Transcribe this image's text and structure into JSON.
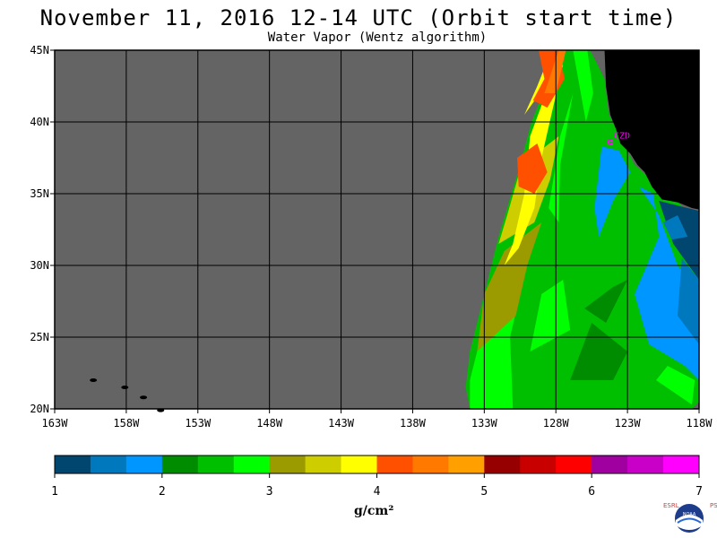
{
  "title": "November 11, 2016  12-14 UTC  (Orbit start time)",
  "subtitle": "Water Vapor (Wentz algorithm)",
  "map": {
    "lon_range": [
      -163,
      -118
    ],
    "lat_range": [
      20,
      45
    ],
    "lon_ticks": [
      -163,
      -158,
      -153,
      -148,
      -143,
      -138,
      -133,
      -128,
      -123,
      -118
    ],
    "lon_tick_labels": [
      "163W",
      "158W",
      "153W",
      "148W",
      "143W",
      "138W",
      "133W",
      "128W",
      "123W",
      "118W"
    ],
    "lat_ticks": [
      45,
      40,
      35,
      30,
      25,
      20
    ],
    "lat_tick_labels": [
      "45N",
      "40N",
      "35N",
      "30N",
      "25N",
      "20N"
    ],
    "grid": true,
    "station": {
      "label": "CZD",
      "lon": -124.2,
      "lat": 38.6,
      "color": "#ff00ff"
    },
    "no_data_color": "#646464",
    "land_color": "#000000"
  },
  "colorbar": {
    "colors": [
      "#00466e",
      "#0078be",
      "#0096ff",
      "#008c00",
      "#00be00",
      "#00ff00",
      "#9b9b00",
      "#cdcd00",
      "#ffff00",
      "#ff5000",
      "#ff7800",
      "#ffa000",
      "#960000",
      "#c80000",
      "#ff0000",
      "#a000a0",
      "#c800c8",
      "#ff00ff"
    ],
    "labels": [
      "1",
      "2",
      "3",
      "4",
      "5",
      "6",
      "7"
    ],
    "units": "g/cm²"
  },
  "logo": {
    "side_left": "ESRL",
    "side_right": "PSD",
    "name": "NOAA"
  }
}
